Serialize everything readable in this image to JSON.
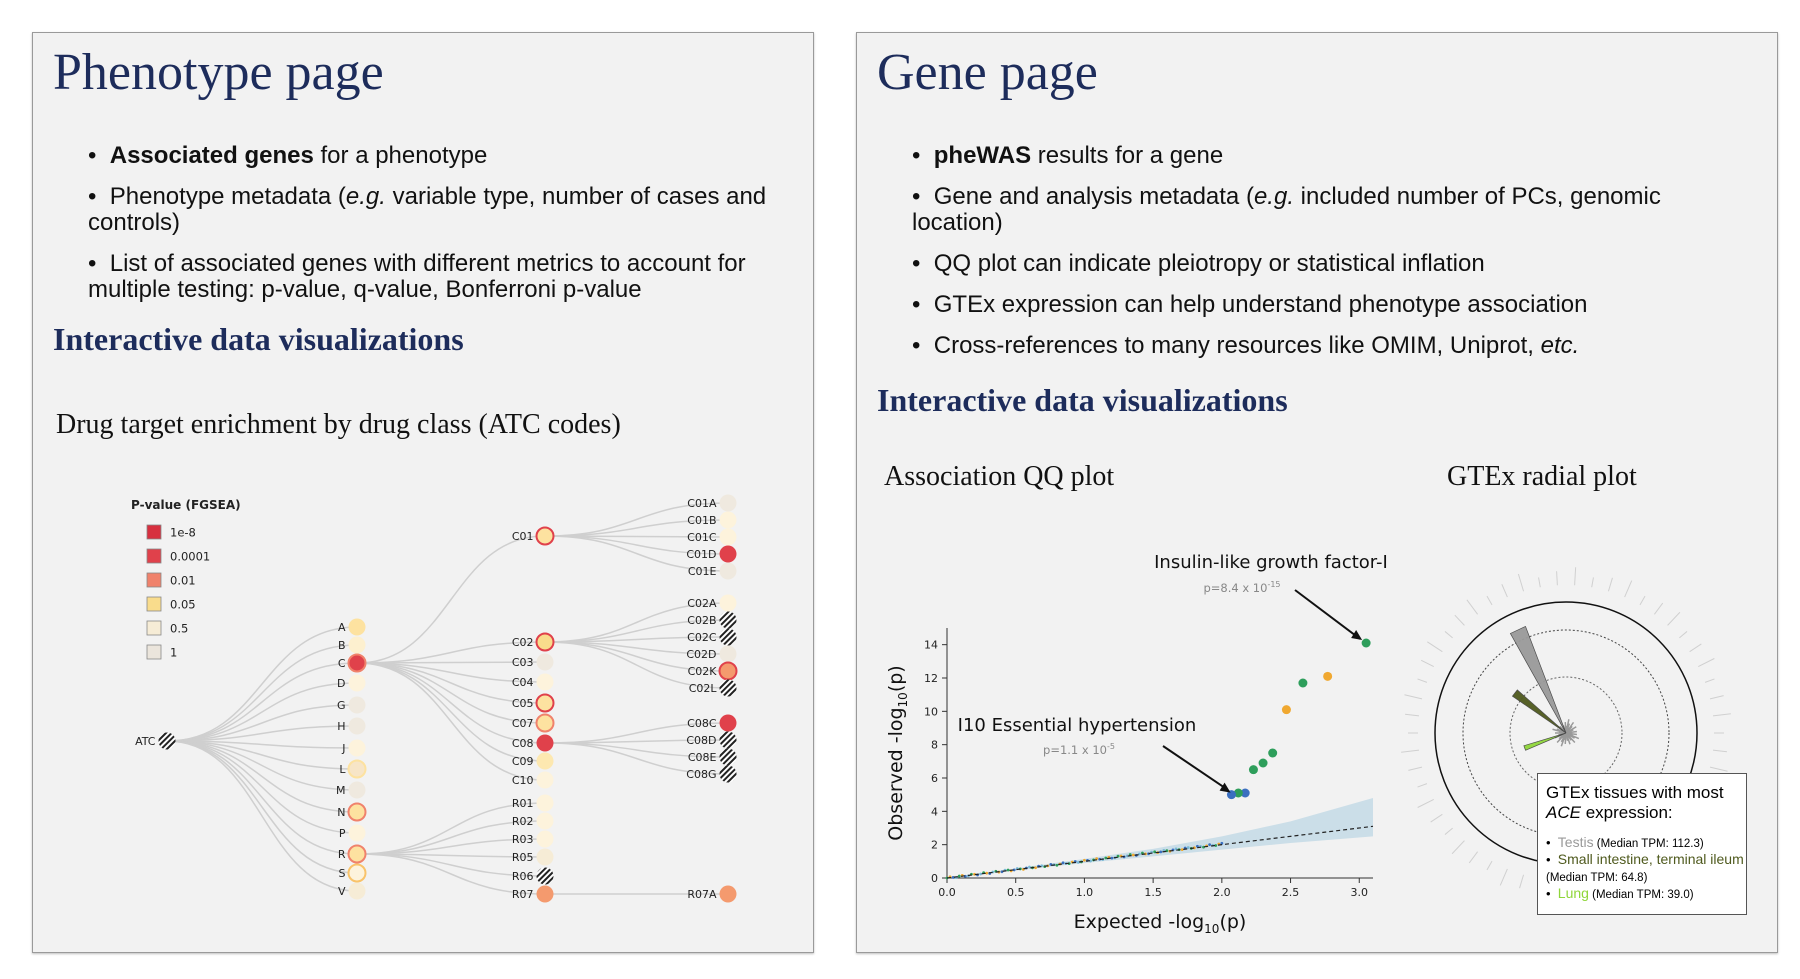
{
  "left": {
    "title": "Phenotype page",
    "bullets": [
      {
        "bold": "Associated genes",
        "rest": " for a phenotype"
      },
      {
        "pre": "Phenotype metadata (",
        "em": "e.g.",
        "post": " variable type, number of cases and controls)"
      },
      {
        "text": "List of associated genes with different metrics to account for multiple testing: p-value, q-value, Bonferroni p-value"
      }
    ],
    "section": "Interactive data visualizations",
    "viz_title": "Drug target enrichment by drug class (ATC codes)",
    "legend": {
      "title": "P-value (FGSEA)",
      "items": [
        {
          "label": "1e-8",
          "color": "#d7303f"
        },
        {
          "label": "0.0001",
          "color": "#e0414b"
        },
        {
          "label": "0.01",
          "color": "#f0826c"
        },
        {
          "label": "0.05",
          "color": "#f9dc8c"
        },
        {
          "label": "0.5",
          "color": "#f6ecd6"
        },
        {
          "label": "1",
          "color": "#ebe5dc"
        }
      ]
    },
    "tree": {
      "root": "ATC",
      "level1": [
        {
          "label": "A",
          "color": "#fde2a0"
        },
        {
          "label": "B",
          "color": "#fdf0cf"
        },
        {
          "label": "C",
          "color": "#e0414b",
          "stroke": "#f0826c"
        },
        {
          "label": "D",
          "color": "#fdf3dc"
        },
        {
          "label": "G",
          "color": "#efe9df"
        },
        {
          "label": "H",
          "color": "#efe9df"
        },
        {
          "label": "J",
          "color": "#fdf3dc"
        },
        {
          "label": "L",
          "color": "#f7e5c7",
          "stroke": "#fde2a0"
        },
        {
          "label": "M",
          "color": "#efe9df"
        },
        {
          "label": "N",
          "color": "#fde2a0",
          "stroke": "#f0826c"
        },
        {
          "label": "P",
          "color": "#fdf3dc"
        },
        {
          "label": "R",
          "color": "#fde2a0",
          "stroke": "#f0826c"
        },
        {
          "label": "S",
          "color": "#fdf3dc",
          "stroke": "#f9c36a"
        },
        {
          "label": "V",
          "color": "#f6ecd6"
        }
      ],
      "level2_c": [
        {
          "label": "C01",
          "color": "#fde2a0",
          "stroke": "#e0414b"
        },
        {
          "label": "C02",
          "color": "#f9dc8c",
          "stroke": "#e0414b"
        },
        {
          "label": "C03",
          "color": "#efe9df"
        },
        {
          "label": "C04",
          "color": "#fdf3dc"
        },
        {
          "label": "C05",
          "color": "#fde2a0",
          "stroke": "#e0414b"
        },
        {
          "label": "C07",
          "color": "#fde2a0",
          "stroke": "#f0826c"
        },
        {
          "label": "C08",
          "color": "#e0414b"
        },
        {
          "label": "C09",
          "color": "#fde8b0"
        },
        {
          "label": "C10",
          "color": "#fdf3dc"
        }
      ],
      "level2_r": [
        {
          "label": "R01",
          "color": "#fdf3dc"
        },
        {
          "label": "R02",
          "color": "#fdf3dc"
        },
        {
          "label": "R03",
          "color": "#fdf3dc"
        },
        {
          "label": "R05",
          "color": "#f6ecd6"
        },
        {
          "label": "R06",
          "color": "hatch"
        },
        {
          "label": "R07",
          "color": "#f49a6e"
        }
      ],
      "c01": [
        {
          "label": "C01A",
          "color": "#efe9df"
        },
        {
          "label": "C01B",
          "color": "#fdf3dc"
        },
        {
          "label": "C01C",
          "color": "#fdf3dc"
        },
        {
          "label": "C01D",
          "color": "#e0414b"
        },
        {
          "label": "C01E",
          "color": "#efe9df"
        }
      ],
      "c02": [
        {
          "label": "C02A",
          "color": "#fdf3dc"
        },
        {
          "label": "C02B",
          "color": "hatch"
        },
        {
          "label": "C02C",
          "color": "hatch"
        },
        {
          "label": "C02D",
          "color": "#efe9df"
        },
        {
          "label": "C02K",
          "color": "#f49a6e",
          "stroke": "#e0414b"
        },
        {
          "label": "C02L",
          "color": "hatch"
        }
      ],
      "c08": [
        {
          "label": "C08C",
          "color": "#e0414b"
        },
        {
          "label": "C08D",
          "color": "hatch"
        },
        {
          "label": "C08E",
          "color": "hatch"
        },
        {
          "label": "C08G",
          "color": "hatch"
        }
      ],
      "r07": [
        {
          "label": "R07A",
          "color": "#f49a6e"
        }
      ]
    }
  },
  "right": {
    "title": "Gene page",
    "bullets": [
      {
        "bold": "pheWAS",
        "rest": " results for a gene"
      },
      {
        "pre": "Gene and analysis metadata (",
        "em": "e.g.",
        "post": " included number of PCs, genomic location)"
      },
      {
        "text": "QQ plot can indicate pleiotropy or statistical inflation"
      },
      {
        "text": "GTEx expression can help understand phenotype association"
      },
      {
        "pre": "Cross-references to many resources like OMIM, Uniprot, ",
        "em": "etc.",
        "post": ""
      }
    ],
    "section": "Interactive data visualizations",
    "qq_title": "Association QQ plot",
    "radial_title": "GTEx radial plot",
    "gtex_box": {
      "head_pre": "GTEx tissues with most ",
      "head_em": "ACE",
      "head_post": " expression:",
      "items": [
        {
          "name": "Testis",
          "value": " (Median TPM: 112.3)",
          "color": "#9a9a9a"
        },
        {
          "name": "Small intestine, terminal ileum",
          "value": " (Median TPM: 64.8)",
          "color": "#4f5a1e"
        },
        {
          "name": "Lung",
          "value": " (Median TPM: 39.0)",
          "color": "#8fd63a"
        }
      ]
    }
  },
  "chart_data": {
    "type": "scatter",
    "title": "Association QQ plot",
    "xlabel": "Expected -log10(p)",
    "ylabel": "Observed -log10(p)",
    "xlim": [
      0,
      3.1
    ],
    "ylim": [
      0,
      15
    ],
    "xticks": [
      "0.0",
      "0.5",
      "1.0",
      "1.5",
      "2.0",
      "2.5",
      "3.0"
    ],
    "yticks": [
      "0",
      "2",
      "4",
      "6",
      "8",
      "10",
      "12",
      "14"
    ],
    "annotations": [
      {
        "label": "Insulin-like growth factor-I",
        "p_text": "p=8.4 x 10",
        "p_exp": "-15",
        "x": 3.05,
        "y": 14.1
      },
      {
        "label": "I10 Essential hypertension",
        "p_text": "p=1.1 x 10",
        "p_exp": "-5",
        "x": 2.1,
        "y": 5.0
      }
    ],
    "points": [
      {
        "x": 3.05,
        "y": 14.1,
        "color": "#2e9e5b"
      },
      {
        "x": 2.77,
        "y": 12.1,
        "color": "#f0a830"
      },
      {
        "x": 2.59,
        "y": 11.7,
        "color": "#2e9e5b"
      },
      {
        "x": 2.47,
        "y": 10.1,
        "color": "#f0a830"
      },
      {
        "x": 2.37,
        "y": 7.5,
        "color": "#2e9e5b"
      },
      {
        "x": 2.3,
        "y": 6.9,
        "color": "#2e9e5b"
      },
      {
        "x": 2.23,
        "y": 6.5,
        "color": "#2e9e5b"
      },
      {
        "x": 2.17,
        "y": 5.1,
        "color": "#3a6fc0"
      },
      {
        "x": 2.12,
        "y": 5.1,
        "color": "#2e9e5b"
      },
      {
        "x": 2.07,
        "y": 5.0,
        "color": "#3a6fc0"
      }
    ],
    "null_line": {
      "x": [
        0,
        3.1
      ],
      "y": [
        0,
        3.1
      ]
    },
    "ci_band": {
      "x": [
        0,
        1.0,
        1.5,
        2.0,
        2.5,
        3.1
      ],
      "upper": [
        0,
        1.15,
        1.75,
        2.5,
        3.4,
        4.8
      ],
      "lower": [
        0,
        0.9,
        1.3,
        1.7,
        2.1,
        2.5
      ]
    }
  }
}
